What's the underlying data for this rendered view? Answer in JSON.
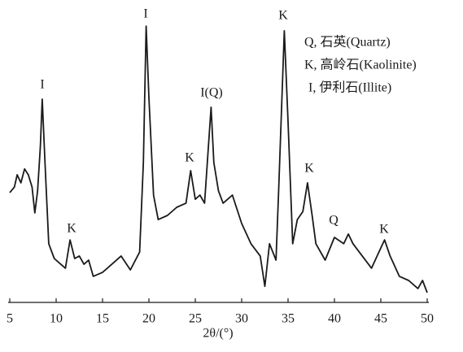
{
  "chart_data": {
    "type": "line",
    "xlabel": "2θ/(°)",
    "xlim": [
      5,
      50
    ],
    "xticks": [
      5,
      10,
      15,
      20,
      25,
      30,
      35,
      40,
      45,
      50
    ],
    "ylim": [
      0,
      100
    ],
    "series": [
      {
        "color": "#1a1a1a",
        "x": [
          5,
          5.5,
          5.8,
          6.2,
          6.6,
          7,
          7.4,
          7.7,
          8.0,
          8.3,
          8.5,
          8.8,
          9.2,
          9.8,
          10.5,
          11,
          11.5,
          12,
          12.5,
          13,
          13.5,
          14,
          15,
          16,
          17,
          18,
          19,
          19.4,
          19.7,
          20,
          20.5,
          21,
          22,
          23,
          24,
          24.5,
          25,
          25.5,
          26,
          26.7,
          27,
          27.5,
          28,
          29,
          30,
          31,
          32,
          32.5,
          33,
          33.7,
          34,
          34.4,
          34.6,
          35,
          35.5,
          36,
          36.6,
          37.1,
          37.6,
          38,
          39,
          40,
          41,
          41.5,
          42,
          43,
          44,
          45,
          45.4,
          46,
          47,
          48,
          49,
          49.5,
          50
        ],
        "values": [
          39.5,
          41.5,
          45.9,
          43,
          48,
          45.9,
          41.5,
          32.2,
          40.1,
          56.1,
          73.1,
          50.3,
          21.1,
          15.8,
          13.7,
          12.3,
          22.5,
          15.8,
          16.7,
          13.7,
          15.2,
          9.4,
          10.8,
          13.7,
          16.7,
          11.7,
          18.1,
          50.3,
          99.4,
          73.7,
          38.6,
          29.8,
          31.3,
          34.2,
          35.7,
          47.4,
          37.1,
          38.6,
          35.7,
          70.2,
          50.3,
          40.1,
          35.7,
          38.6,
          28.4,
          21.1,
          16.7,
          5.8,
          21.1,
          15.2,
          41.5,
          79.5,
          97.7,
          64.9,
          21.1,
          29.8,
          32.7,
          43,
          31.3,
          21.1,
          15.2,
          23.4,
          21.1,
          24.6,
          21.1,
          16.7,
          12.3,
          19.6,
          22.5,
          16.7,
          9.4,
          7.9,
          5,
          7.9,
          3.5
        ]
      }
    ],
    "annotations": [
      "I",
      "I",
      "I(Q)",
      "K",
      "K",
      "K",
      "K",
      "Q",
      "K"
    ],
    "legend_lines": [
      "Q, 石英(Quartz)",
      "K, 高岭石(Kaolinite)",
      "I, 伊利石(Illite)"
    ]
  }
}
